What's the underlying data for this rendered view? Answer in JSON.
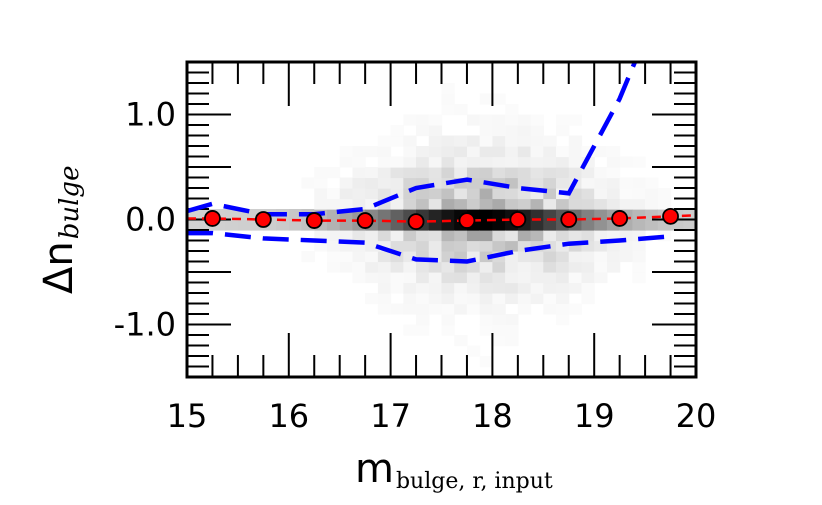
{
  "chart_data": {
    "type": "scatter",
    "title": "",
    "xlabel_main": "m",
    "xlabel_sub": "bulge, r, input",
    "ylabel_main": "Δn",
    "ylabel_sub": "bulge",
    "xlim": [
      15,
      20
    ],
    "ylim": [
      -1.5,
      1.5
    ],
    "xticks": [
      15,
      16,
      17,
      18,
      19,
      20
    ],
    "xtick_labels": [
      "15",
      "16",
      "17",
      "18",
      "19",
      "20"
    ],
    "yticks": [
      -1.0,
      0.0,
      1.0
    ],
    "ytick_labels": [
      "-1.0",
      "0.0",
      "1.0"
    ],
    "minor_tick_step_x": 0.25,
    "minor_tick_step_y": 0.1,
    "colors": {
      "median_points": "#ff0000",
      "median_line": "#ff0000",
      "scatter_band": "#0000ff",
      "density": "#000000"
    },
    "series": [
      {
        "name": "median",
        "style": "circle-markers",
        "x": [
          15.25,
          15.75,
          16.25,
          16.75,
          17.25,
          17.75,
          18.25,
          18.75,
          19.25,
          19.75
        ],
        "y": [
          0.01,
          0.0,
          -0.01,
          -0.01,
          -0.02,
          -0.01,
          0.0,
          0.0,
          0.01,
          0.03
        ]
      },
      {
        "name": "median-trend",
        "style": "red-dashed",
        "x": [
          15.0,
          15.25,
          15.75,
          16.25,
          16.75,
          17.25,
          17.75,
          18.25,
          18.75,
          19.25,
          19.75,
          20.0
        ],
        "y": [
          0.01,
          0.01,
          0.0,
          -0.01,
          -0.01,
          -0.02,
          -0.01,
          0.0,
          0.0,
          0.01,
          0.03,
          0.04
        ]
      },
      {
        "name": "upper-scatter",
        "style": "blue-dashed",
        "x": [
          15.0,
          15.25,
          15.75,
          16.25,
          16.75,
          17.25,
          17.75,
          18.25,
          18.75,
          19.25,
          19.4
        ],
        "y": [
          0.08,
          0.15,
          0.05,
          0.05,
          0.1,
          0.3,
          0.38,
          0.3,
          0.25,
          1.15,
          1.5
        ]
      },
      {
        "name": "lower-scatter",
        "style": "blue-dashed",
        "x": [
          15.0,
          15.25,
          15.75,
          16.25,
          16.75,
          17.25,
          17.75,
          18.25,
          18.75,
          19.25,
          19.75
        ],
        "y": [
          -0.13,
          -0.13,
          -0.18,
          -0.2,
          -0.22,
          -0.38,
          -0.4,
          -0.3,
          -0.23,
          -0.2,
          -0.16
        ]
      }
    ],
    "density": {
      "description": "2D histogram of galaxies; darkest near delta n = 0 around m = 17.5-18.5",
      "peak_x": 17.9,
      "spread_x": 0.75,
      "core_y_halfwidth": 0.05,
      "halo_y_spread": 0.35
    }
  }
}
